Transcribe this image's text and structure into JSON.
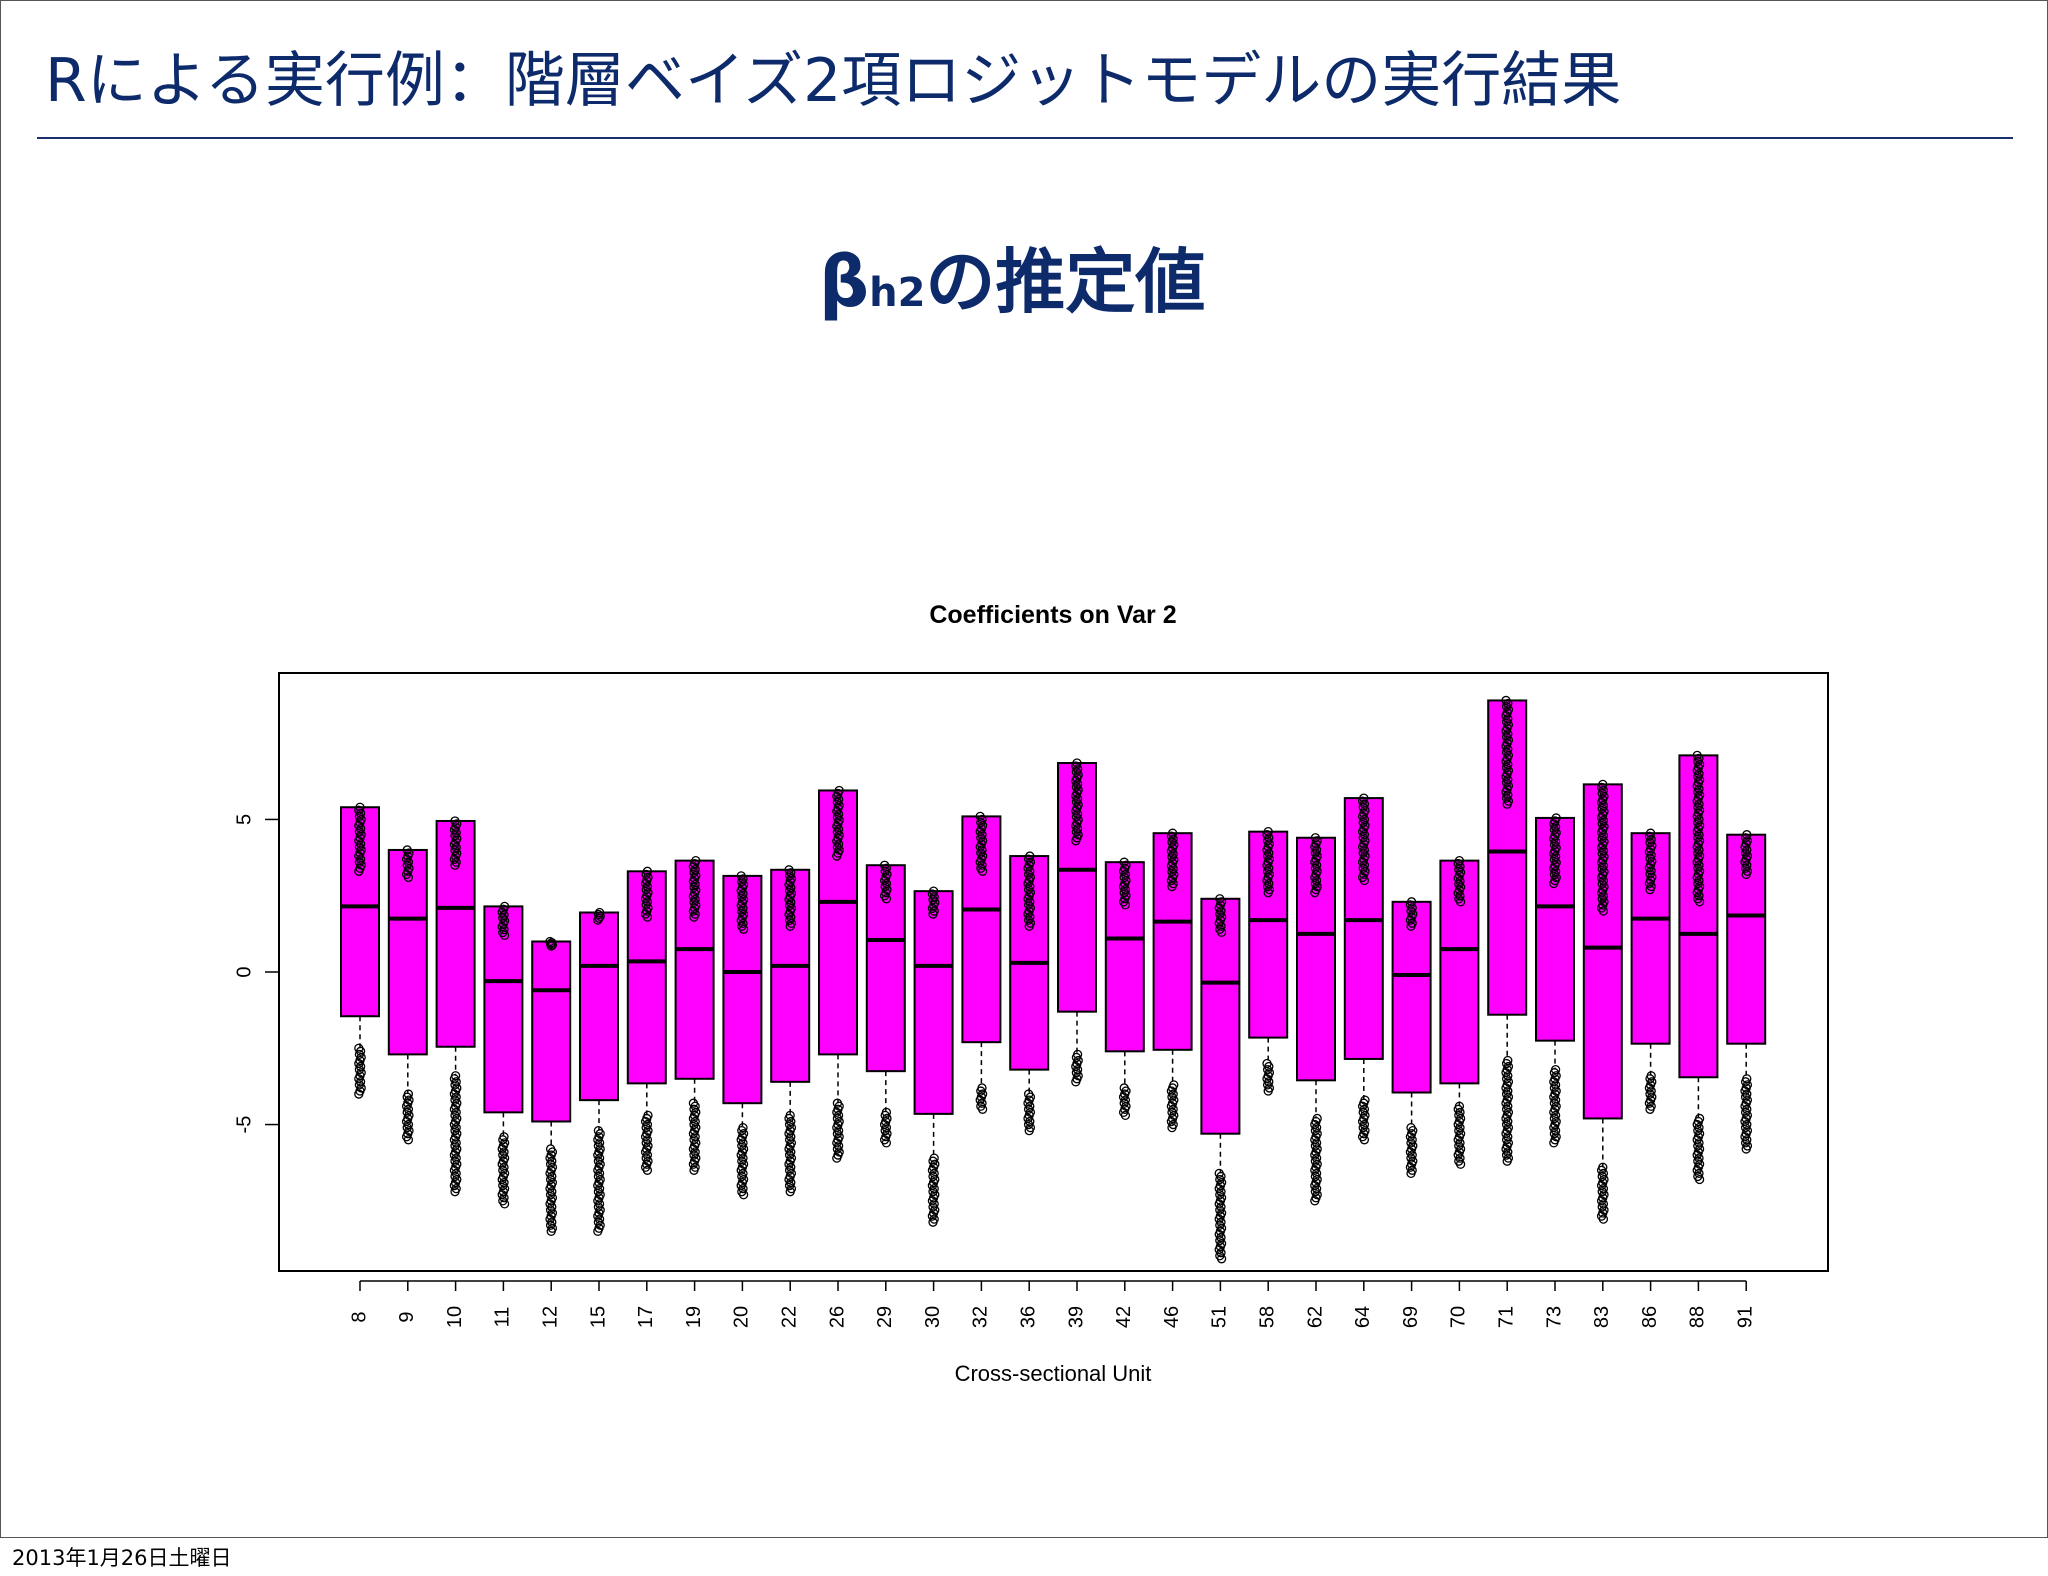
{
  "slide": {
    "title": "Rによる実行例：階層ベイズ2項ロジットモデルの実行結果",
    "subtitle_beta": "β",
    "subtitle_subscript": "h2",
    "subtitle_rest": "の推定値",
    "title_color": "#0d2a6b",
    "rule_color": "#1a2f6e",
    "subtitle_color": "#0d2a6b"
  },
  "footer": {
    "date_text": "2013年1月26日土曜日"
  },
  "colors": {
    "box_fill": "#ff00ff",
    "stroke": "#000000"
  },
  "chart_data": {
    "type": "boxplot",
    "title": "Coefficients on Var 2",
    "xlabel": "Cross-sectional Unit",
    "ylabel": "",
    "ylim": [
      -9.8,
      9.8
    ],
    "yticks": [
      -5,
      0,
      5
    ],
    "ytick_labels": [
      "-5",
      "0",
      "5"
    ],
    "categories": [
      "8",
      "9",
      "10",
      "11",
      "12",
      "15",
      "17",
      "19",
      "20",
      "22",
      "26",
      "29",
      "30",
      "32",
      "36",
      "39",
      "42",
      "46",
      "51",
      "58",
      "62",
      "64",
      "69",
      "70",
      "71",
      "73",
      "83",
      "86",
      "88",
      "91"
    ],
    "q1": [
      -1.45,
      -2.7,
      -2.45,
      -4.6,
      -4.9,
      -4.2,
      -3.65,
      -3.5,
      -4.3,
      -3.6,
      -2.7,
      -3.25,
      -4.65,
      -2.3,
      -3.2,
      -1.3,
      -2.6,
      -2.55,
      -5.3,
      -2.15,
      -3.55,
      -2.85,
      -3.95,
      -3.65,
      -1.4,
      -2.25,
      -4.8,
      -2.35,
      -3.45,
      -2.35
    ],
    "median": [
      2.15,
      1.75,
      2.1,
      -0.3,
      -0.6,
      0.2,
      0.35,
      0.75,
      0.0,
      0.2,
      2.3,
      1.05,
      0.2,
      2.05,
      0.3,
      3.35,
      1.1,
      1.65,
      -0.35,
      1.7,
      1.25,
      1.7,
      -0.1,
      0.75,
      3.95,
      2.15,
      0.8,
      1.75,
      1.25,
      1.85
    ],
    "q3": [
      5.4,
      4.0,
      4.95,
      2.15,
      1.0,
      1.95,
      3.3,
      3.65,
      3.15,
      3.35,
      5.95,
      3.5,
      2.65,
      5.1,
      3.8,
      6.85,
      3.6,
      4.55,
      2.4,
      4.6,
      4.4,
      5.7,
      2.3,
      3.65,
      8.9,
      5.05,
      6.15,
      4.55,
      7.1,
      4.5
    ],
    "outlier_range_high": [
      [
        3.3,
        5.4
      ],
      [
        3.1,
        4.0
      ],
      [
        3.5,
        4.95
      ],
      [
        1.2,
        2.15
      ],
      [
        0.85,
        1.0
      ],
      [
        1.7,
        1.95
      ],
      [
        1.8,
        3.3
      ],
      [
        1.8,
        3.65
      ],
      [
        1.4,
        3.15
      ],
      [
        1.5,
        3.35
      ],
      [
        3.8,
        5.95
      ],
      [
        2.4,
        3.5
      ],
      [
        1.9,
        2.65
      ],
      [
        3.3,
        5.1
      ],
      [
        1.5,
        3.8
      ],
      [
        4.3,
        6.85
      ],
      [
        2.2,
        3.6
      ],
      [
        2.8,
        4.55
      ],
      [
        1.3,
        2.4
      ],
      [
        2.6,
        4.6
      ],
      [
        2.6,
        4.4
      ],
      [
        3.0,
        5.7
      ],
      [
        1.5,
        2.3
      ],
      [
        2.3,
        3.65
      ],
      [
        5.5,
        8.9
      ],
      [
        2.9,
        5.05
      ],
      [
        2.0,
        6.15
      ],
      [
        2.7,
        4.55
      ],
      [
        2.3,
        7.1
      ],
      [
        3.2,
        4.5
      ]
    ],
    "outlier_range_low": [
      [
        -4.0,
        -2.5
      ],
      [
        -5.5,
        -4.0
      ],
      [
        -7.2,
        -3.4
      ],
      [
        -7.6,
        -5.4
      ],
      [
        -8.5,
        -5.8
      ],
      [
        -8.5,
        -5.2
      ],
      [
        -6.5,
        -4.7
      ],
      [
        -6.5,
        -4.3
      ],
      [
        -7.3,
        -5.1
      ],
      [
        -7.2,
        -4.7
      ],
      [
        -6.1,
        -4.3
      ],
      [
        -5.6,
        -4.6
      ],
      [
        -8.2,
        -6.1
      ],
      [
        -4.5,
        -3.8
      ],
      [
        -5.2,
        -4.0
      ],
      [
        -3.6,
        -2.7
      ],
      [
        -4.7,
        -3.8
      ],
      [
        -5.1,
        -3.7
      ],
      [
        -9.4,
        -6.6
      ],
      [
        -3.9,
        -3.0
      ],
      [
        -7.5,
        -4.8
      ],
      [
        -5.5,
        -4.2
      ],
      [
        -6.6,
        -5.1
      ],
      [
        -6.3,
        -4.4
      ],
      [
        -6.2,
        -2.9
      ],
      [
        -5.6,
        -3.2
      ],
      [
        -8.1,
        -6.4
      ],
      [
        -4.5,
        -3.4
      ],
      [
        -6.8,
        -4.8
      ],
      [
        -5.8,
        -3.5
      ]
    ]
  }
}
